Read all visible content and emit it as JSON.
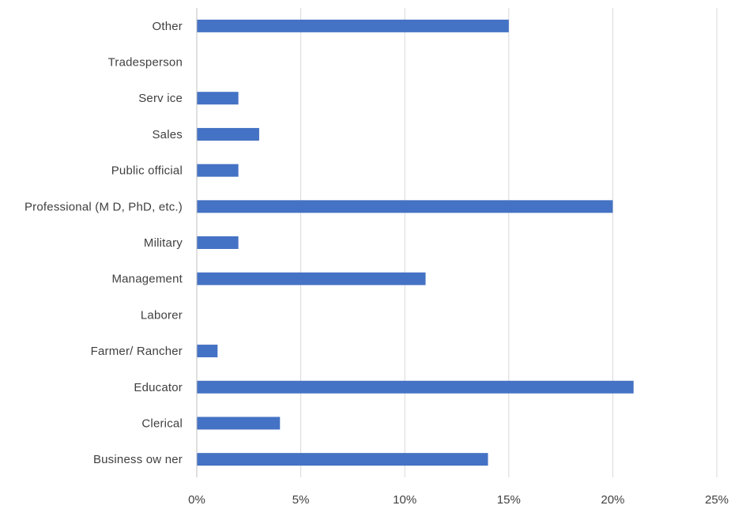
{
  "chart_data": {
    "type": "bar",
    "orientation": "horizontal",
    "categories": [
      "Business ow ner",
      "Clerical",
      "Educator",
      "Farmer/ Rancher",
      "Laborer",
      "Management",
      "Military",
      "Professional (M D, PhD, etc.)",
      "Public official",
      "Sales",
      "Serv ice",
      "Tradesperson",
      "Other"
    ],
    "values": [
      14,
      4,
      21,
      1,
      0,
      11,
      2,
      20,
      2,
      3,
      2,
      0,
      15
    ],
    "xlim": [
      0,
      25
    ],
    "xticks": [
      0,
      5,
      10,
      15,
      20,
      25
    ],
    "xtick_labels": [
      "0%",
      "5%",
      "10%",
      "15%",
      "20%",
      "25%"
    ],
    "title": "",
    "xlabel": "",
    "ylabel": "",
    "grid": "vertical",
    "legend": "none",
    "bar_color": "#4472c4"
  }
}
